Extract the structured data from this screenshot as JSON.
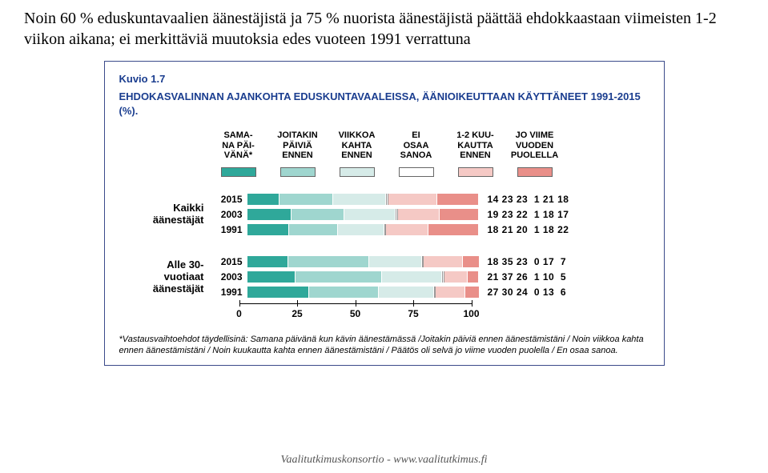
{
  "page_title": "Noin 60 % eduskuntavaalien äänestäjistä ja 75 % nuorista äänestäjistä päättää ehdokkaastaan viimeisten 1-2 viikon aikana; ei merkittäviä muutoksia edes vuoteen 1991 verrattuna",
  "figure_label": "Kuvio 1.7",
  "chart_title": "EHDOKASVALINNAN AJANKOHTA EDUSKUNTAVAALEISSA, ÄÄNIOIKEUTTAAN KÄYTTÄNEET 1991-2015 (%).",
  "legend": {
    "cols": [
      {
        "l1": "SAMA-",
        "l2": "NA PÄI-",
        "l3": "VÄNÄ*"
      },
      {
        "l1": "JOITAKIN",
        "l2": "PÄIVIÄ",
        "l3": "ENNEN"
      },
      {
        "l1": "VIIKKOA",
        "l2": "KAHTA",
        "l3": "ENNEN"
      },
      {
        "l1": "EI",
        "l2": "OSAA",
        "l3": "SANOA"
      },
      {
        "l1": "1-2 KUU-",
        "l2": "KAUTTA",
        "l3": "ENNEN"
      },
      {
        "l1": "JO VIIME",
        "l2": "VUODEN",
        "l3": "PUOLELLA"
      }
    ],
    "colors": [
      "#2fa89a",
      "#9fd6cf",
      "#d6ebe8",
      "#ffffff",
      "#f5c9c5",
      "#e98f89"
    ]
  },
  "groups": [
    {
      "label_l1": "Kaikki",
      "label_l2": "äänestäjät",
      "rows": [
        {
          "year": "2015",
          "vals": [
            14,
            23,
            23,
            1,
            21,
            18
          ]
        },
        {
          "year": "2003",
          "vals": [
            19,
            23,
            22,
            1,
            18,
            17
          ]
        },
        {
          "year": "1991",
          "vals": [
            18,
            21,
            20,
            1,
            18,
            22
          ]
        }
      ]
    },
    {
      "label_l1": "Alle 30-",
      "label_l2": "vuotiaat",
      "label_l3": "äänestäjät",
      "rows": [
        {
          "year": "2015",
          "vals": [
            18,
            35,
            23,
            0,
            17,
            7
          ]
        },
        {
          "year": "2003",
          "vals": [
            21,
            37,
            26,
            1,
            10,
            5
          ]
        },
        {
          "year": "1991",
          "vals": [
            27,
            30,
            24,
            0,
            13,
            6
          ]
        }
      ]
    }
  ],
  "axis": {
    "ticks": [
      0,
      25,
      50,
      75,
      100
    ]
  },
  "footnote": "*Vastausvaihtoehdot täydellisinä: Samana päivänä kun kävin äänestämässä /Joitakin päiviä ennen äänestämistäni / Noin viikkoa kahta ennen äänestämistäni / Noin kuukautta kahta ennen äänestämistäni / Päätös oli selvä jo viime vuoden puolella / En osaa sanoa.",
  "footer": "Vaalitutkimuskonsortio - www.vaalitutkimus.fi"
}
